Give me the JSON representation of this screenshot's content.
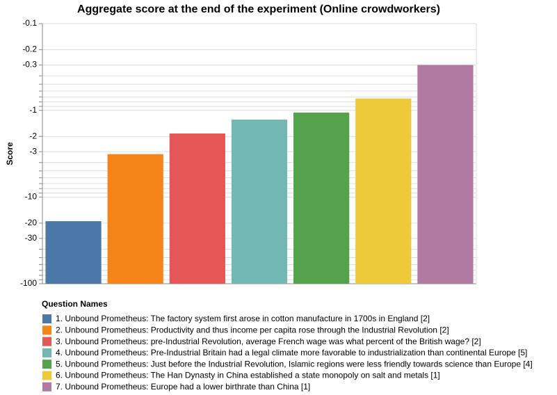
{
  "chart_data": {
    "type": "bar",
    "title": "Aggregate score at the end of the experiment  (Online crowdworkers)",
    "y_label": "Score",
    "legend_title": "Question Names",
    "categories": [
      "1. Unbound Prometheus: The factory system first arose in cotton manufacture in 1700s in England [2]",
      "2. Unbound Prometheus: Productivity and thus income per capita rose through the Industrial Revolution [2]",
      "3. Unbound Prometheus: pre-Industrial Revolution, average French wage was what percent of the British wage? [2]",
      "4. Unbound Prometheus: Pre-Industrial Britain had a legal climate more favorable to industrialization than continental Europe [5]",
      "5. Unbound Prometheus: Just before the Industrial Revolution, Islamic regions were less friendly towards science than Europe [4]",
      "6. Unbound Prometheus: The Han Dynasty in China established a state monopoly on salt and metals [1]",
      "7. Unbound Prometheus: Europe had a lower birthrate than China [1]"
    ],
    "values": [
      -19,
      -3.2,
      -1.85,
      -1.28,
      -1.06,
      -0.73,
      -0.3
    ],
    "colors": [
      "#4c78a8",
      "#f58518",
      "#e45756",
      "#72b7b2",
      "#54a24b",
      "#eeca3b",
      "#b279a2"
    ],
    "ylim": [
      -100,
      -0.1
    ],
    "yticks": [
      -100,
      -30,
      -20,
      -10,
      -3,
      -2,
      -1,
      -0.3,
      -0.2,
      -0.1
    ],
    "minor_yticks": [
      -90,
      -80,
      -70,
      -60,
      -50,
      -40,
      -9,
      -8,
      -7,
      -6,
      -5,
      -4,
      -0.9,
      -0.8,
      -0.7,
      -0.6,
      -0.5,
      -0.4
    ],
    "log_scale": true,
    "grid": true
  }
}
